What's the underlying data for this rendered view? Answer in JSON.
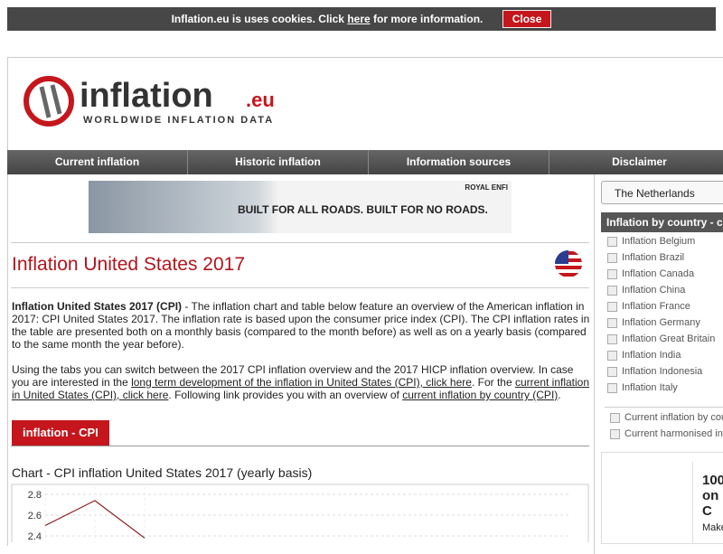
{
  "cookie_bar": {
    "text": "Inflation.eu is uses cookies. Click",
    "link": "here",
    "text_after": "for more information.",
    "button": "Close"
  },
  "logo": {
    "name": "inflation",
    "tld": ".eu",
    "tagline": "WORLDWIDE INFLATION DATA"
  },
  "nav": [
    "Current inflation",
    "Historic inflation",
    "Information sources",
    "Disclaimer"
  ],
  "ad": {
    "brand": "ROYAL ENFI",
    "text": "BUILT FOR ALL ROADS. BUILT FOR NO ROADS."
  },
  "heading": "Inflation United States 2017",
  "paragraphs": [
    [
      {
        "bold": "Inflation United States 2017 (CPI)"
      },
      {
        "text": " - The inflation chart and table below feature an overview of the American inflation in 2017: CPI United States 2017. The inflation rate is based upon the consumer price index (CPI). The CPI inflation rates in the table are presented both on a monthly basis (compared to the month before) as well as on a yearly basis (compared to the same month the year before)."
      }
    ],
    [
      {
        "text": "Using the tabs you can switch between the 2017 CPI inflation overview and the 2017 HICP inflation overview. In case you are interested in the "
      },
      {
        "link": "long term development of the inflation in United States (CPI), click here"
      },
      {
        "text": ". For the "
      },
      {
        "link": "current inflation in United States (CPI), click here"
      },
      {
        "text": ". Following link provides you with an overview of "
      },
      {
        "link": "current inflation by country (CPI)"
      },
      {
        "text": "."
      }
    ]
  ],
  "tab": "inflation - CPI",
  "chart": {
    "type": "line",
    "title": "Chart - CPI inflation United States 2017 (yearly basis)",
    "categories": [
      null,
      null,
      null
    ],
    "values": [
      2.5,
      2.74,
      2.38
    ],
    "color": "#8b1a1a",
    "ylim": [
      2.4,
      2.8
    ],
    "yticks": [
      2.8,
      2.6,
      2.4
    ],
    "grid": true
  },
  "sidebar": {
    "select": "The Netherlands",
    "header": "Inflation by country - c",
    "countries": [
      "Inflation Belgium",
      "Inflation Brazil",
      "Inflation Canada",
      "Inflation China",
      "Inflation France",
      "Inflation Germany",
      "Inflation Great Britain",
      "Inflation India",
      "Inflation Indonesia",
      "Inflation Italy"
    ],
    "links": [
      "Current inflation by cou",
      "Current harmonised infl"
    ],
    "box": [
      "100",
      "on C",
      "Make"
    ]
  }
}
